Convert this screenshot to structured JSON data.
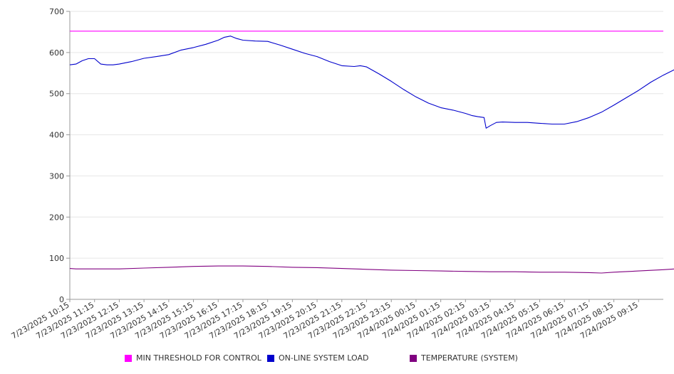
{
  "chart_data": {
    "type": "line",
    "title": "",
    "xlabel": "",
    "ylabel": "",
    "ylim": [
      0,
      700
    ],
    "yticks": [
      0,
      100,
      200,
      300,
      400,
      500,
      600,
      700
    ],
    "x_tick_labels": [
      "7/23/2025 10:15",
      "7/23/2025 11:15",
      "7/23/2025 12:15",
      "7/23/2025 13:15",
      "7/23/2025 14:15",
      "7/23/2025 15:15",
      "7/23/2025 16:15",
      "7/23/2025 17:15",
      "7/23/2025 18:15",
      "7/23/2025 19:15",
      "7/23/2025 20:15",
      "7/23/2025 21:15",
      "7/23/2025 22:15",
      "7/23/2025 23:15",
      "7/24/2025 00:15",
      "7/24/2025 01:15",
      "7/24/2025 02:15",
      "7/24/2025 03:15",
      "7/24/2025 04:15",
      "7/24/2025 05:15",
      "7/24/2025 06:15",
      "7/24/2025 07:15",
      "7/24/2025 08:15",
      "7/24/2025 09:15"
    ],
    "x_range": [
      "7/23/2025 10:15",
      "7/24/2025 10:15"
    ],
    "grid": "horizontal",
    "legend_position": "bottom",
    "series": [
      {
        "name": "MIN THRESHOLD FOR CONTROL",
        "color": "#ff00ff",
        "points": [
          [
            "7/23/2025 10:15",
            652
          ],
          [
            "7/24/2025 10:15",
            652
          ]
        ]
      },
      {
        "name": "ON-LINE SYSTEM LOAD",
        "color": "#0000cc",
        "points": [
          [
            "7/23/2025 10:15",
            570
          ],
          [
            "7/23/2025 10:30",
            572
          ],
          [
            "7/23/2025 10:45",
            580
          ],
          [
            "7/23/2025 11:00",
            585
          ],
          [
            "7/23/2025 11:15",
            585
          ],
          [
            "7/23/2025 11:30",
            572
          ],
          [
            "7/23/2025 11:45",
            570
          ],
          [
            "7/23/2025 12:00",
            570
          ],
          [
            "7/23/2025 12:15",
            572
          ],
          [
            "7/23/2025 12:45",
            578
          ],
          [
            "7/23/2025 13:15",
            586
          ],
          [
            "7/23/2025 13:45",
            590
          ],
          [
            "7/23/2025 14:15",
            595
          ],
          [
            "7/23/2025 14:45",
            606
          ],
          [
            "7/23/2025 15:15",
            612
          ],
          [
            "7/23/2025 15:45",
            620
          ],
          [
            "7/23/2025 16:15",
            630
          ],
          [
            "7/23/2025 16:30",
            637
          ],
          [
            "7/23/2025 16:45",
            640
          ],
          [
            "7/23/2025 17:00",
            634
          ],
          [
            "7/23/2025 17:15",
            630
          ],
          [
            "7/23/2025 17:45",
            628
          ],
          [
            "7/23/2025 18:15",
            627
          ],
          [
            "7/23/2025 18:45",
            618
          ],
          [
            "7/23/2025 19:15",
            608
          ],
          [
            "7/23/2025 19:45",
            598
          ],
          [
            "7/23/2025 20:15",
            590
          ],
          [
            "7/23/2025 20:45",
            578
          ],
          [
            "7/23/2025 21:15",
            568
          ],
          [
            "7/23/2025 21:45",
            566
          ],
          [
            "7/23/2025 22:00",
            568
          ],
          [
            "7/23/2025 22:15",
            565
          ],
          [
            "7/23/2025 22:45",
            548
          ],
          [
            "7/23/2025 23:15",
            530
          ],
          [
            "7/23/2025 23:45",
            510
          ],
          [
            "7/24/2025 00:15",
            492
          ],
          [
            "7/24/2025 00:45",
            477
          ],
          [
            "7/24/2025 01:15",
            466
          ],
          [
            "7/24/2025 01:45",
            460
          ],
          [
            "7/24/2025 02:15",
            452
          ],
          [
            "7/24/2025 02:30",
            447
          ],
          [
            "7/24/2025 02:45",
            444
          ],
          [
            "7/24/2025 03:00",
            442
          ],
          [
            "7/24/2025 03:05",
            416
          ],
          [
            "7/24/2025 03:15",
            422
          ],
          [
            "7/24/2025 03:30",
            430
          ],
          [
            "7/24/2025 03:45",
            431
          ],
          [
            "7/24/2025 04:15",
            430
          ],
          [
            "7/24/2025 04:45",
            430
          ],
          [
            "7/24/2025 05:15",
            428
          ],
          [
            "7/24/2025 05:45",
            426
          ],
          [
            "7/24/2025 06:15",
            426
          ],
          [
            "7/24/2025 06:45",
            432
          ],
          [
            "7/24/2025 07:15",
            442
          ],
          [
            "7/24/2025 07:45",
            455
          ],
          [
            "7/24/2025 08:15",
            472
          ],
          [
            "7/24/2025 08:45",
            490
          ],
          [
            "7/24/2025 09:15",
            508
          ],
          [
            "7/24/2025 09:45",
            528
          ],
          [
            "7/24/2025 10:15",
            545
          ],
          [
            "7/24/2025 10:45",
            560
          ],
          [
            "7/24/2025 11:00",
            568
          ],
          [
            "7/24/2025 11:15",
            568
          ]
        ]
      },
      {
        "name": "TEMPERATURE (SYSTEM)",
        "color": "#800080",
        "points": [
          [
            "7/23/2025 10:15",
            75
          ],
          [
            "7/23/2025 10:30",
            74
          ],
          [
            "7/23/2025 11:15",
            74
          ],
          [
            "7/23/2025 12:15",
            74
          ],
          [
            "7/23/2025 13:15",
            76
          ],
          [
            "7/23/2025 14:15",
            78
          ],
          [
            "7/23/2025 15:15",
            80
          ],
          [
            "7/23/2025 16:15",
            81
          ],
          [
            "7/23/2025 17:15",
            81
          ],
          [
            "7/23/2025 18:15",
            80
          ],
          [
            "7/23/2025 19:15",
            78
          ],
          [
            "7/23/2025 20:15",
            77
          ],
          [
            "7/23/2025 21:15",
            75
          ],
          [
            "7/23/2025 22:15",
            73
          ],
          [
            "7/23/2025 23:15",
            71
          ],
          [
            "7/24/2025 00:15",
            70
          ],
          [
            "7/24/2025 01:15",
            69
          ],
          [
            "7/24/2025 02:15",
            68
          ],
          [
            "7/24/2025 03:15",
            67
          ],
          [
            "7/24/2025 04:15",
            67
          ],
          [
            "7/24/2025 05:15",
            66
          ],
          [
            "7/24/2025 06:15",
            66
          ],
          [
            "7/24/2025 07:15",
            65
          ],
          [
            "7/24/2025 07:45",
            64
          ],
          [
            "7/24/2025 08:15",
            66
          ],
          [
            "7/24/2025 09:15",
            69
          ],
          [
            "7/24/2025 10:15",
            72
          ],
          [
            "7/24/2025 10:45",
            74
          ],
          [
            "7/24/2025 11:15",
            75
          ]
        ]
      }
    ]
  }
}
